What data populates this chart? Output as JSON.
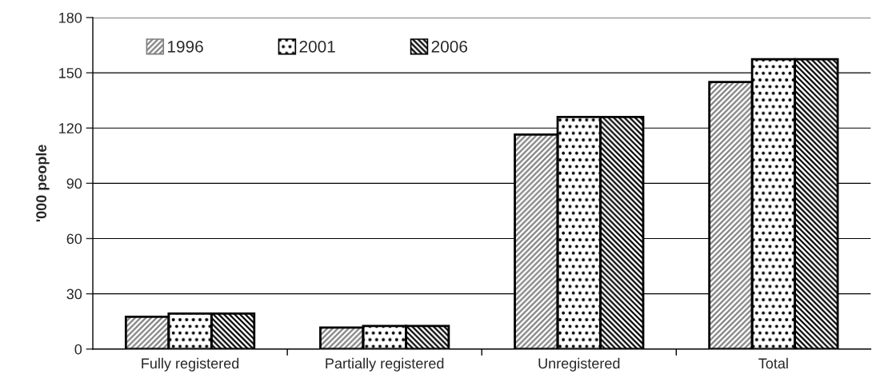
{
  "chart_data": {
    "type": "bar",
    "ylabel": "'000 people",
    "categories": [
      "Fully registered",
      "Partially registered",
      "Unregistered",
      "Total"
    ],
    "series": [
      {
        "name": "1996",
        "color": "#808080",
        "values": [
          17.5,
          11.7,
          116.5,
          145
        ]
      },
      {
        "name": "2001",
        "color": "#000000",
        "values": [
          19.3,
          12.5,
          126,
          157.4
        ]
      },
      {
        "name": "2006",
        "color": "#000000",
        "values": [
          19.3,
          12.5,
          126,
          157.4
        ]
      }
    ],
    "ylim": [
      0,
      180
    ],
    "yticks": [
      0,
      30,
      60,
      90,
      120,
      150,
      180
    ],
    "grid": "y",
    "legend": "top left"
  }
}
